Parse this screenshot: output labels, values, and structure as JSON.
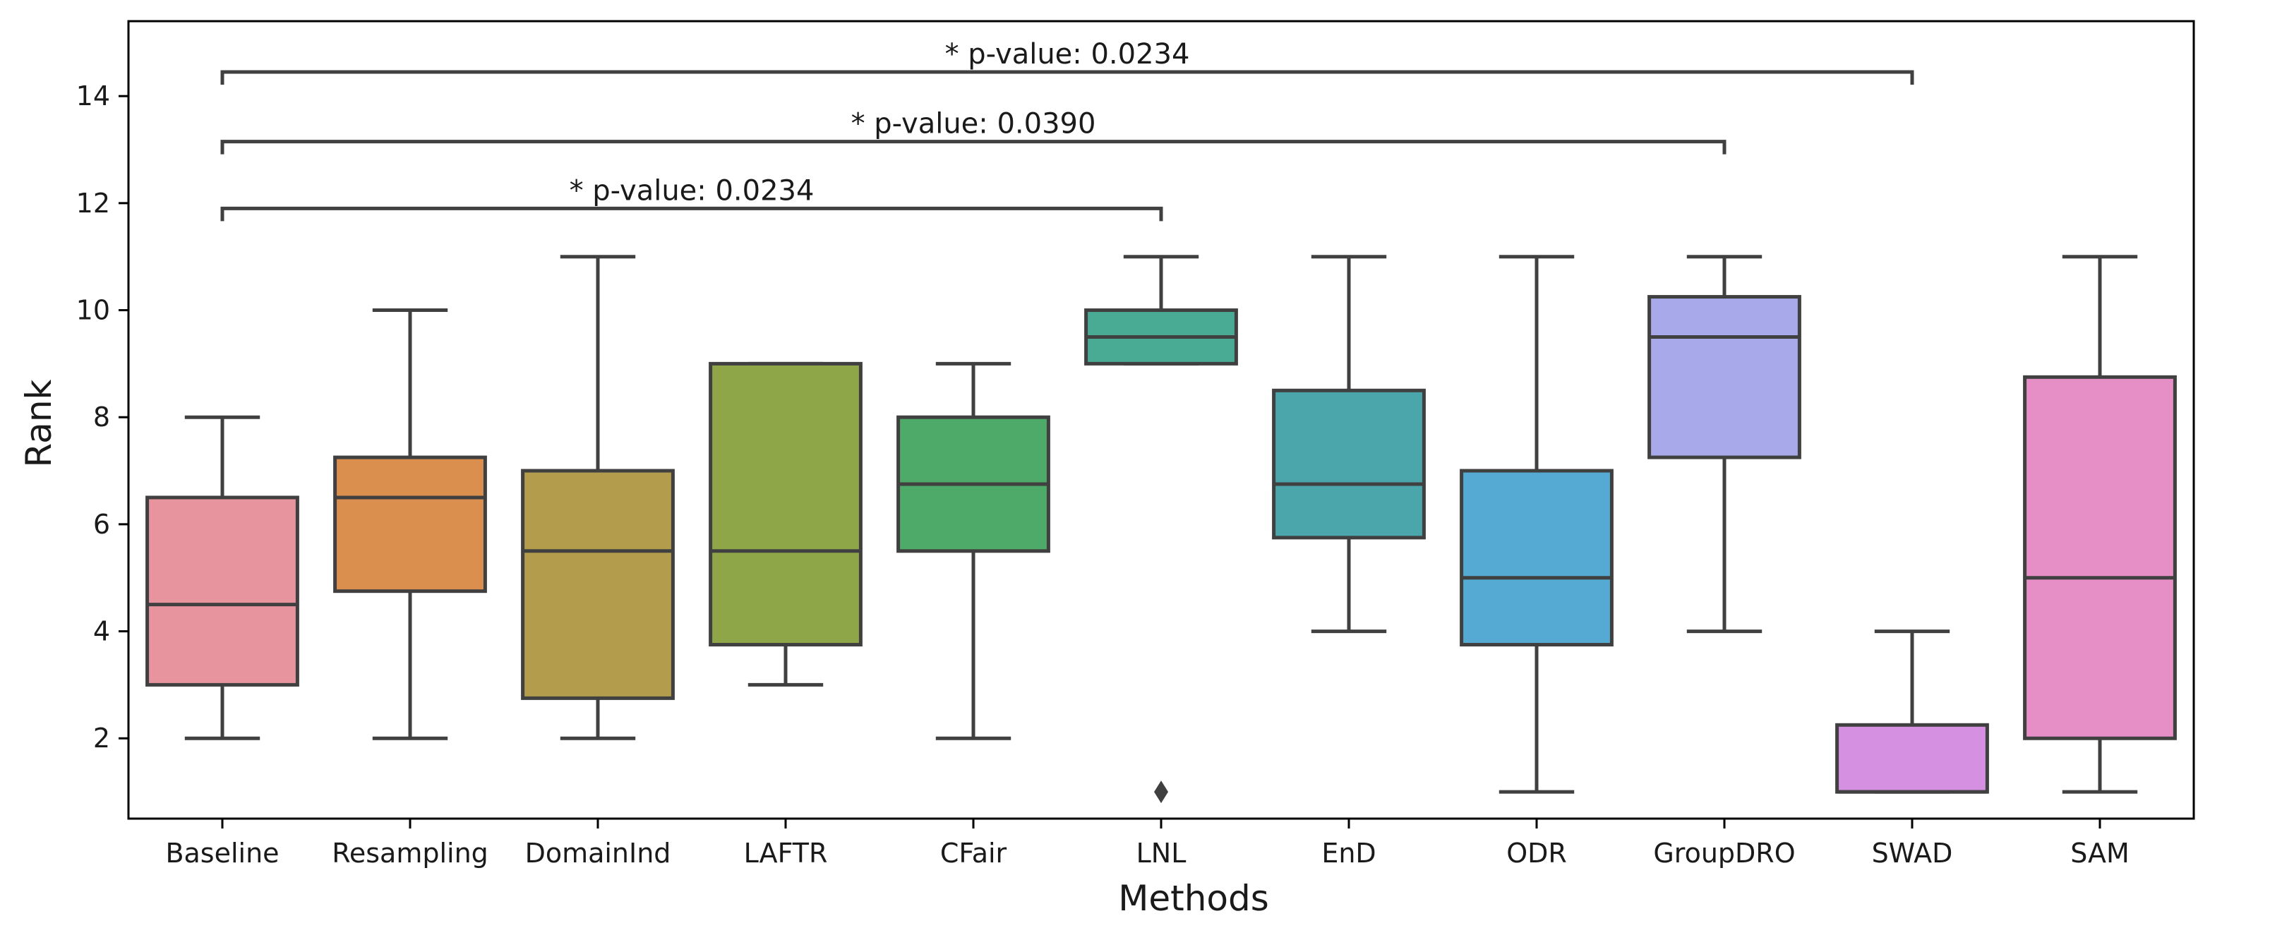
{
  "chart_data": {
    "type": "box",
    "xlabel": "Methods",
    "ylabel": "Rank",
    "ylim": [
      0.5,
      15.4
    ],
    "yticks": [
      2,
      4,
      6,
      8,
      10,
      12,
      14
    ],
    "grid": false,
    "categories": [
      "Baseline",
      "Resampling",
      "DomainInd",
      "LAFTR",
      "CFair",
      "LNL",
      "EnD",
      "ODR",
      "GroupDRO",
      "SWAD",
      "SAM"
    ],
    "boxes": [
      {
        "category": "Baseline",
        "whisker_low": 2,
        "q1": 3,
        "median": 4.5,
        "q3": 6.5,
        "whisker_high": 8,
        "outliers": [],
        "color": "#e8949f"
      },
      {
        "category": "Resampling",
        "whisker_low": 2,
        "q1": 4.75,
        "median": 6.5,
        "q3": 7.25,
        "whisker_high": 10,
        "outliers": [],
        "color": "#da8f4f"
      },
      {
        "category": "DomainInd",
        "whisker_low": 2,
        "q1": 2.75,
        "median": 5.5,
        "q3": 7,
        "whisker_high": 11,
        "outliers": [],
        "color": "#b39c4c"
      },
      {
        "category": "LAFTR",
        "whisker_low": 3,
        "q1": 3.75,
        "median": 5.5,
        "q3": 9,
        "whisker_high": 9,
        "outliers": [],
        "color": "#8ea648"
      },
      {
        "category": "CFair",
        "whisker_low": 2,
        "q1": 5.5,
        "median": 6.75,
        "q3": 8,
        "whisker_high": 9,
        "outliers": [],
        "color": "#4eaa68"
      },
      {
        "category": "LNL",
        "whisker_low": 9,
        "q1": 9,
        "median": 9.5,
        "q3": 10,
        "whisker_high": 11,
        "outliers": [
          1
        ],
        "color": "#4aab94"
      },
      {
        "category": "EnD",
        "whisker_low": 4,
        "q1": 5.75,
        "median": 6.75,
        "q3": 8.5,
        "whisker_high": 11,
        "outliers": [],
        "color": "#4aa6ab"
      },
      {
        "category": "ODR",
        "whisker_low": 1,
        "q1": 3.75,
        "median": 5,
        "q3": 7,
        "whisker_high": 11,
        "outliers": [],
        "color": "#55aad4"
      },
      {
        "category": "GroupDRO",
        "whisker_low": 4,
        "q1": 7.25,
        "median": 9.5,
        "q3": 10.25,
        "whisker_high": 11,
        "outliers": [],
        "color": "#a8a9ea"
      },
      {
        "category": "SWAD",
        "whisker_low": 1,
        "q1": 1,
        "median": 1,
        "q3": 2.25,
        "whisker_high": 4,
        "outliers": [],
        "color": "#d690e2"
      },
      {
        "category": "SAM",
        "whisker_low": 1,
        "q1": 2,
        "median": 5,
        "q3": 8.75,
        "whisker_high": 11,
        "outliers": [],
        "color": "#e68fc6"
      }
    ],
    "annotations": [
      {
        "from": "Baseline",
        "to": "LNL",
        "y": 11.9,
        "label": "* p-value: 0.0234"
      },
      {
        "from": "Baseline",
        "to": "GroupDRO",
        "y": 13.15,
        "label": "* p-value: 0.0390"
      },
      {
        "from": "Baseline",
        "to": "SWAD",
        "y": 14.45,
        "label": "* p-value: 0.0234"
      }
    ],
    "line_color": "#404040"
  }
}
